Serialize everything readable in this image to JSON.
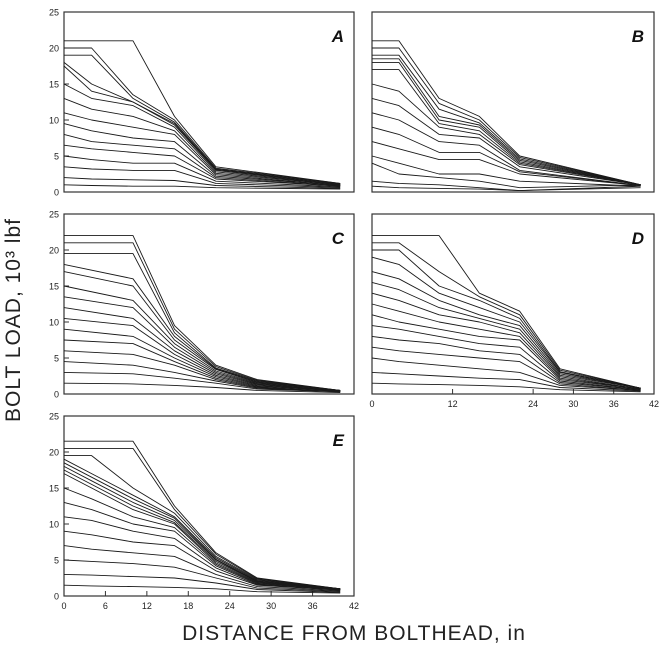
{
  "figure": {
    "ylabel": "BOLT LOAD, 10³ lbf",
    "xlabel": "DISTANCE FROM BOLTHEAD, in",
    "line_color": "#1a1a1a"
  },
  "chart_data": [
    {
      "type": "line",
      "panel_label": "A",
      "ylim": [
        0,
        25
      ],
      "yticks": [
        0,
        5,
        10,
        15,
        20,
        25
      ],
      "xlim": [
        0,
        42
      ],
      "xticks": [],
      "x": [
        0,
        4,
        10,
        16,
        22,
        40
      ],
      "series": [
        {
          "values": [
            21,
            21,
            21,
            10.5,
            3.5,
            1.2
          ]
        },
        {
          "values": [
            20,
            20,
            13.5,
            10,
            3.3,
            1.2
          ]
        },
        {
          "values": [
            19,
            19,
            13,
            9.7,
            3.2,
            1.1
          ]
        },
        {
          "values": [
            18,
            15,
            12.5,
            9.5,
            3.1,
            1.1
          ]
        },
        {
          "values": [
            17.5,
            14,
            12.5,
            9.3,
            3.0,
            1.0
          ]
        },
        {
          "values": [
            15,
            13,
            12,
            9.0,
            2.8,
            1.0
          ]
        },
        {
          "values": [
            13,
            11.5,
            10.5,
            8.5,
            2.6,
            1.0
          ]
        },
        {
          "values": [
            11,
            10,
            9,
            8,
            2.4,
            0.9
          ]
        },
        {
          "values": [
            9.5,
            8.5,
            7.5,
            7,
            2.2,
            0.9
          ]
        },
        {
          "values": [
            8,
            7,
            6.5,
            6,
            2.0,
            0.8
          ]
        },
        {
          "values": [
            6.5,
            6,
            5.5,
            5,
            1.8,
            0.8
          ]
        },
        {
          "values": [
            5,
            4.5,
            4,
            4,
            1.5,
            0.7
          ]
        },
        {
          "values": [
            3.5,
            3.2,
            3,
            3,
            1.2,
            0.6
          ]
        },
        {
          "values": [
            2,
            1.8,
            1.7,
            1.6,
            0.9,
            0.5
          ]
        },
        {
          "values": [
            1,
            0.9,
            0.8,
            0.8,
            0.6,
            0.4
          ]
        }
      ]
    },
    {
      "type": "line",
      "panel_label": "B",
      "ylim": [
        0,
        25
      ],
      "yticks": [],
      "xlim": [
        0,
        42
      ],
      "xticks": [],
      "x": [
        0,
        4,
        10,
        16,
        22,
        40
      ],
      "series": [
        {
          "values": [
            21,
            21,
            13,
            10.5,
            5,
            1.0
          ]
        },
        {
          "values": [
            20,
            20,
            12.3,
            10,
            4.8,
            1.0
          ]
        },
        {
          "values": [
            19,
            19,
            11.5,
            9.6,
            4.6,
            1.0
          ]
        },
        {
          "values": [
            18.5,
            18.5,
            10.5,
            9.3,
            4.4,
            1.0
          ]
        },
        {
          "values": [
            18,
            18,
            10,
            9,
            4.2,
            1.0
          ]
        },
        {
          "values": [
            17,
            17,
            9.5,
            8.5,
            4.0,
            1.0
          ]
        },
        {
          "values": [
            15,
            14,
            9,
            8,
            3.8,
            1.0
          ]
        },
        {
          "values": [
            13,
            12,
            8,
            7.5,
            3.5,
            1.0
          ]
        },
        {
          "values": [
            11,
            10,
            7,
            6.5,
            3.0,
            0.9
          ]
        },
        {
          "values": [
            9,
            8,
            5.5,
            5.5,
            2.8,
            0.9
          ]
        },
        {
          "values": [
            7,
            6,
            4.5,
            4.5,
            2.5,
            0.9
          ]
        },
        {
          "values": [
            5,
            4,
            2.5,
            2.5,
            1.5,
            0.8
          ]
        },
        {
          "values": [
            4,
            2.5,
            2,
            1.5,
            0.6,
            1.0
          ]
        },
        {
          "values": [
            1.5,
            1.2,
            1,
            0.6,
            0.2,
            0.8
          ]
        },
        {
          "values": [
            0.8,
            0.6,
            0.5,
            0.4,
            0.2,
            0.6
          ]
        }
      ]
    },
    {
      "type": "line",
      "panel_label": "C",
      "ylim": [
        0,
        25
      ],
      "yticks": [
        0,
        5,
        10,
        15,
        20,
        25
      ],
      "xlim": [
        0,
        42
      ],
      "xticks": [],
      "x": [
        0,
        10,
        16,
        22,
        28,
        40
      ],
      "series": [
        {
          "values": [
            22,
            22,
            9.5,
            4,
            2,
            0.5
          ]
        },
        {
          "values": [
            21,
            21,
            9,
            3.8,
            1.9,
            0.5
          ]
        },
        {
          "values": [
            19.5,
            19.5,
            8.5,
            3.6,
            1.8,
            0.5
          ]
        },
        {
          "values": [
            18,
            16,
            8,
            3.5,
            1.7,
            0.5
          ]
        },
        {
          "values": [
            17,
            15,
            7.5,
            3.4,
            1.6,
            0.5
          ]
        },
        {
          "values": [
            15,
            13,
            7,
            3.2,
            1.5,
            0.4
          ]
        },
        {
          "values": [
            13.5,
            12,
            6.5,
            3,
            1.4,
            0.4
          ]
        },
        {
          "values": [
            12,
            10.5,
            6,
            2.8,
            1.3,
            0.4
          ]
        },
        {
          "values": [
            10.5,
            9.5,
            5.5,
            2.6,
            1.2,
            0.4
          ]
        },
        {
          "values": [
            9,
            8,
            5,
            2.4,
            1.1,
            0.4
          ]
        },
        {
          "values": [
            7.5,
            7,
            4.5,
            2.2,
            1.0,
            0.3
          ]
        },
        {
          "values": [
            6,
            5.5,
            4,
            2,
            0.9,
            0.3
          ]
        },
        {
          "values": [
            4.5,
            4,
            3,
            1.8,
            0.8,
            0.3
          ]
        },
        {
          "values": [
            3,
            2.8,
            2.2,
            1.5,
            0.7,
            0.3
          ]
        },
        {
          "values": [
            1.5,
            1.4,
            1.2,
            0.9,
            0.5,
            0.2
          ]
        }
      ]
    },
    {
      "type": "line",
      "panel_label": "D",
      "ylim": [
        0,
        25
      ],
      "yticks": [],
      "xlim": [
        0,
        42
      ],
      "xticks": [
        0,
        12,
        24,
        30,
        36,
        42
      ],
      "xticklabels": [
        "0",
        "12",
        "24",
        "30",
        "36",
        "42"
      ],
      "x": [
        0,
        4,
        10,
        16,
        22,
        28,
        40
      ],
      "series": [
        {
          "values": [
            22,
            22,
            22,
            14,
            11.5,
            3.5,
            0.8
          ]
        },
        {
          "values": [
            21,
            21,
            17,
            13.5,
            11,
            3.3,
            0.8
          ]
        },
        {
          "values": [
            20,
            20,
            15,
            13,
            10.5,
            3.1,
            0.8
          ]
        },
        {
          "values": [
            19,
            18,
            14,
            12,
            10,
            3.0,
            0.8
          ]
        },
        {
          "values": [
            17,
            16,
            13,
            11,
            9.5,
            2.8,
            0.8
          ]
        },
        {
          "values": [
            15.5,
            14.5,
            12,
            10.5,
            9,
            2.6,
            0.8
          ]
        },
        {
          "values": [
            14,
            13,
            11,
            10,
            8.5,
            2.4,
            0.7
          ]
        },
        {
          "values": [
            12.5,
            11.5,
            10,
            9,
            8,
            2.2,
            0.7
          ]
        },
        {
          "values": [
            11,
            10,
            9,
            8,
            7.5,
            2.0,
            0.7
          ]
        },
        {
          "values": [
            9.5,
            9,
            8,
            7,
            6.5,
            1.8,
            0.6
          ]
        },
        {
          "values": [
            8,
            7.5,
            7,
            6,
            5.5,
            1.6,
            0.6
          ]
        },
        {
          "values": [
            6.5,
            6,
            5.5,
            5,
            4.5,
            1.4,
            0.5
          ]
        },
        {
          "values": [
            5,
            4.5,
            4,
            3.5,
            3,
            1.2,
            0.5
          ]
        },
        {
          "values": [
            3,
            2.8,
            2.5,
            2.2,
            2,
            0.9,
            0.4
          ]
        },
        {
          "values": [
            1.5,
            1.4,
            1.3,
            1.2,
            1.0,
            0.6,
            0.3
          ]
        }
      ]
    },
    {
      "type": "line",
      "panel_label": "E",
      "ylim": [
        0,
        25
      ],
      "yticks": [
        0,
        5,
        10,
        15,
        20,
        25
      ],
      "xlim": [
        0,
        42
      ],
      "xticks": [
        0,
        6,
        12,
        18,
        24,
        30,
        36,
        42
      ],
      "xticklabels": [
        "0",
        "6",
        "12",
        "18",
        "24",
        "30",
        "36",
        "42"
      ],
      "x": [
        0,
        4,
        10,
        16,
        22,
        28,
        40
      ],
      "series": [
        {
          "values": [
            21.5,
            21.5,
            21.5,
            12.5,
            6,
            2.5,
            1.0
          ]
        },
        {
          "values": [
            20.5,
            20.5,
            20.5,
            12,
            5.8,
            2.4,
            1.0
          ]
        },
        {
          "values": [
            19.5,
            19.5,
            15,
            11.5,
            5.5,
            2.3,
            1.0
          ]
        },
        {
          "values": [
            19,
            17,
            14,
            11,
            5.3,
            2.2,
            1.0
          ]
        },
        {
          "values": [
            18.5,
            16.5,
            13.5,
            10.8,
            5.1,
            2.1,
            1.0
          ]
        },
        {
          "values": [
            18,
            16,
            13,
            10.5,
            5.0,
            2.0,
            1.0
          ]
        },
        {
          "values": [
            17.5,
            15.5,
            12.5,
            10.2,
            4.8,
            2.0,
            0.9
          ]
        },
        {
          "values": [
            17,
            15,
            12,
            10,
            4.6,
            1.9,
            0.9
          ]
        },
        {
          "values": [
            15,
            13.5,
            11,
            9.5,
            4.4,
            1.8,
            0.9
          ]
        },
        {
          "values": [
            13,
            12,
            10,
            9,
            4.2,
            1.7,
            0.9
          ]
        },
        {
          "values": [
            11,
            10.5,
            9,
            8,
            3.9,
            1.6,
            0.8
          ]
        },
        {
          "values": [
            9,
            8.5,
            7.5,
            7,
            3.5,
            1.5,
            0.8
          ]
        },
        {
          "values": [
            7,
            6.5,
            6,
            5.5,
            3,
            1.3,
            0.7
          ]
        },
        {
          "values": [
            5,
            4.8,
            4.5,
            4,
            2.5,
            1.1,
            0.6
          ]
        },
        {
          "values": [
            3,
            2.9,
            2.7,
            2.5,
            1.8,
            0.9,
            0.5
          ]
        },
        {
          "values": [
            1.5,
            1.4,
            1.3,
            1.2,
            1.0,
            0.6,
            0.4
          ]
        }
      ]
    }
  ]
}
